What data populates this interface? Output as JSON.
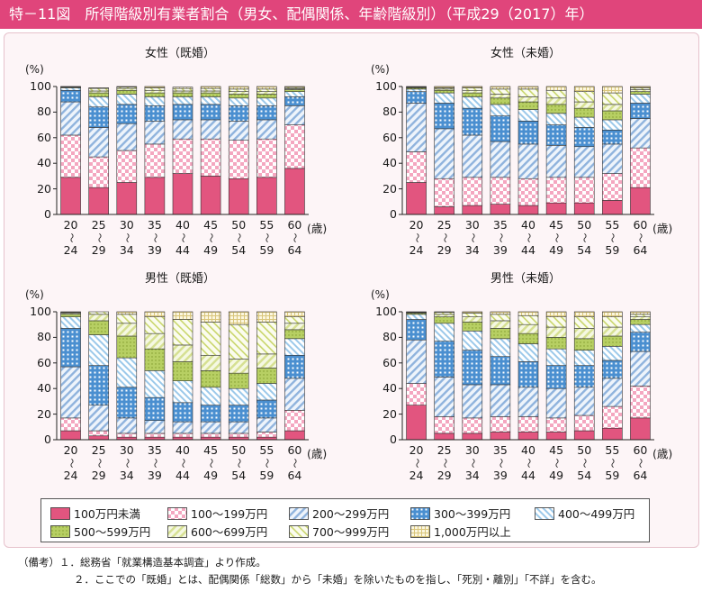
{
  "header": {
    "title": "特－11図　所得階級別有業者割合（男女、配偶関係、年齢階級別）（平成29（2017）年）"
  },
  "y_unit": "(%)",
  "x_unit": "(歳)",
  "yticks": [
    "100",
    "80",
    "60",
    "40",
    "20",
    "0"
  ],
  "age_top": [
    "20",
    "25",
    "30",
    "35",
    "40",
    "45",
    "50",
    "55",
    "60"
  ],
  "age_bottom": [
    "24",
    "29",
    "34",
    "39",
    "44",
    "49",
    "54",
    "59",
    "64"
  ],
  "tilde": "～",
  "legend": [
    {
      "label": "100万円未満",
      "color": "#e2557f",
      "pattern": "solid"
    },
    {
      "label": "100～199万円",
      "color": "#f4a7c0",
      "pattern": "check"
    },
    {
      "label": "200～299万円",
      "color": "#8fb3dd",
      "pattern": "diag"
    },
    {
      "label": "300～399万円",
      "color": "#4a8fd0",
      "pattern": "grid"
    },
    {
      "label": "400～499万円",
      "color": "#9cc9ea",
      "pattern": "diag2"
    },
    {
      "label": "500～599万円",
      "color": "#b7cf63",
      "pattern": "dots"
    },
    {
      "label": "600～699万円",
      "color": "#d6e092",
      "pattern": "diag3"
    },
    {
      "label": "700～999万円",
      "color": "#dde6a8",
      "pattern": "diag4"
    },
    {
      "label": "1,000万円以上",
      "color": "#ecdca0",
      "pattern": "grid2"
    }
  ],
  "notes": [
    "（備考）１．総務省「就業構造基本調査」より作成。",
    "２．ここでの「既婚」とは、配偶関係「総数」から「未婚」を除いたものを指し、「死別・離別」「不詳」を含む。"
  ],
  "chart_data": [
    {
      "type": "bar",
      "stacked": true,
      "title": "女性（既婚）",
      "categories": [
        "20～24",
        "25～29",
        "30～34",
        "35～39",
        "40～44",
        "45～49",
        "50～54",
        "55～59",
        "60～64"
      ],
      "ylim": [
        0,
        100
      ],
      "ylabel": "(%)",
      "xlabel": "(歳)",
      "series": [
        {
          "name": "100万円未満",
          "values": [
            29,
            21,
            25,
            29,
            32,
            30,
            28,
            29,
            36
          ]
        },
        {
          "name": "100～199万円",
          "values": [
            33,
            24,
            25,
            26,
            27,
            29,
            30,
            30,
            34
          ]
        },
        {
          "name": "200～299万円",
          "values": [
            26,
            23,
            21,
            18,
            15,
            15,
            15,
            15,
            15
          ]
        },
        {
          "name": "300～399万円",
          "values": [
            9,
            16,
            15,
            12,
            12,
            12,
            12,
            11,
            7
          ]
        },
        {
          "name": "400～499万円",
          "values": [
            2,
            8,
            8,
            7,
            6,
            6,
            6,
            6,
            4
          ]
        },
        {
          "name": "500～599万円",
          "values": [
            0.5,
            3,
            3,
            3,
            3,
            3,
            3,
            3,
            1.5
          ]
        },
        {
          "name": "600～699万円",
          "values": [
            0.2,
            1.5,
            1.5,
            2,
            1.5,
            1.5,
            2,
            2,
            0.8
          ]
        },
        {
          "name": "700～999万円",
          "values": [
            0.2,
            2,
            1,
            2,
            2,
            2,
            2,
            2,
            1
          ]
        },
        {
          "name": "1,000万円以上",
          "values": [
            0.1,
            0.5,
            0.5,
            1,
            1,
            1.5,
            2,
            2,
            0.7
          ]
        }
      ]
    },
    {
      "type": "bar",
      "stacked": true,
      "title": "女性（未婚）",
      "categories": [
        "20～24",
        "25～29",
        "30～34",
        "35～39",
        "40～44",
        "45～49",
        "50～54",
        "55～59",
        "60～64"
      ],
      "ylim": [
        0,
        100
      ],
      "ylabel": "(%)",
      "xlabel": "(歳)",
      "series": [
        {
          "name": "100万円未満",
          "values": [
            25,
            6,
            7,
            8,
            7,
            9,
            9,
            11,
            21
          ]
        },
        {
          "name": "100～199万円",
          "values": [
            24,
            22,
            22,
            21,
            21,
            20,
            20,
            21,
            31
          ]
        },
        {
          "name": "200～299万円",
          "values": [
            38,
            39,
            33,
            28,
            27,
            25,
            24,
            23,
            23
          ]
        },
        {
          "name": "300～399万円",
          "values": [
            9,
            20,
            21,
            20,
            18,
            16,
            15,
            11,
            12
          ]
        },
        {
          "name": "400～499万円",
          "values": [
            2,
            8,
            9,
            9,
            9,
            9,
            8,
            8,
            7
          ]
        },
        {
          "name": "500～599万円",
          "values": [
            1,
            2,
            3,
            5,
            6,
            7,
            7,
            7,
            2
          ]
        },
        {
          "name": "600～699万円",
          "values": [
            0.5,
            1,
            2,
            3,
            4,
            5,
            5,
            5,
            1.5
          ]
        },
        {
          "name": "700～999万円",
          "values": [
            0.3,
            1,
            2,
            4,
            6,
            6,
            8,
            9,
            1.5
          ]
        },
        {
          "name": "1,000万円以上",
          "values": [
            0.2,
            1,
            1,
            2,
            2,
            3,
            4,
            5,
            1
          ]
        }
      ]
    },
    {
      "type": "bar",
      "stacked": true,
      "title": "男性（既婚）",
      "categories": [
        "20～24",
        "25～29",
        "30～34",
        "35～39",
        "40～44",
        "45～49",
        "50～54",
        "55～59",
        "60～64"
      ],
      "ylim": [
        0,
        100
      ],
      "ylabel": "(%)",
      "xlabel": "(歳)",
      "series": [
        {
          "name": "100万円未満",
          "values": [
            7,
            3,
            2,
            2,
            2,
            2,
            2,
            2,
            7
          ]
        },
        {
          "name": "100～199万円",
          "values": [
            10,
            4,
            3,
            3,
            3,
            3,
            3,
            4,
            16
          ]
        },
        {
          "name": "200～299万円",
          "values": [
            40,
            20,
            12,
            10,
            9,
            9,
            9,
            11,
            25
          ]
        },
        {
          "name": "300～399万円",
          "values": [
            30,
            31,
            24,
            18,
            15,
            13,
            13,
            14,
            18
          ]
        },
        {
          "name": "400～499万円",
          "values": [
            9,
            24,
            23,
            21,
            17,
            14,
            13,
            13,
            13
          ]
        },
        {
          "name": "500～599万円",
          "values": [
            2,
            11,
            17,
            17,
            15,
            13,
            12,
            12,
            7
          ]
        },
        {
          "name": "600～699万円",
          "values": [
            1,
            5,
            10,
            12,
            13,
            12,
            11,
            11,
            5
          ]
        },
        {
          "name": "700～999万円",
          "values": [
            0.5,
            2,
            7,
            13,
            20,
            26,
            27,
            25,
            5
          ]
        },
        {
          "name": "1,000万円以上",
          "values": [
            0.5,
            0,
            2,
            4,
            6,
            8,
            10,
            8,
            4
          ]
        }
      ]
    },
    {
      "type": "bar",
      "stacked": true,
      "title": "男性（未婚）",
      "categories": [
        "20～24",
        "25～29",
        "30～34",
        "35～39",
        "40～44",
        "45～49",
        "50～54",
        "55～59",
        "60～64"
      ],
      "ylim": [
        0,
        100
      ],
      "ylabel": "(%)",
      "xlabel": "(歳)",
      "series": [
        {
          "name": "100万円未満",
          "values": [
            27,
            5,
            5,
            6,
            6,
            6,
            7,
            9,
            17
          ]
        },
        {
          "name": "100～199万円",
          "values": [
            17,
            13,
            12,
            12,
            12,
            11,
            12,
            17,
            25
          ]
        },
        {
          "name": "200～299万円",
          "values": [
            34,
            31,
            26,
            25,
            23,
            23,
            22,
            22,
            27
          ]
        },
        {
          "name": "300～399万円",
          "values": [
            16,
            28,
            27,
            22,
            20,
            18,
            17,
            14,
            15
          ]
        },
        {
          "name": "400～499万円",
          "values": [
            4,
            14,
            15,
            14,
            14,
            13,
            12,
            11,
            6
          ]
        },
        {
          "name": "500～599万円",
          "values": [
            1,
            5,
            7,
            8,
            8,
            9,
            9,
            8,
            4
          ]
        },
        {
          "name": "600～699万円",
          "values": [
            0.5,
            2,
            4,
            6,
            7,
            8,
            8,
            7,
            2
          ]
        },
        {
          "name": "700～999万円",
          "values": [
            0.3,
            1.5,
            3,
            5,
            7,
            8,
            9,
            8,
            2
          ]
        },
        {
          "name": "1,000万円以上",
          "values": [
            0.2,
            0.5,
            1,
            2,
            3,
            4,
            4,
            4,
            2
          ]
        }
      ]
    }
  ]
}
